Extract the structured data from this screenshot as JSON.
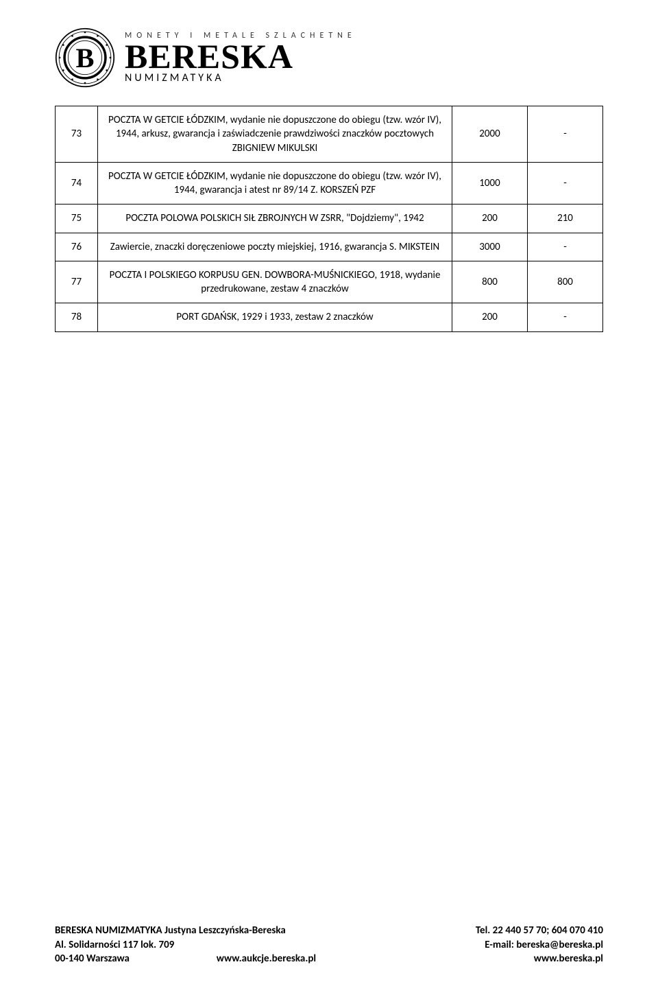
{
  "header": {
    "tagline": "MONETY I METALE SZLACHETNE",
    "brand": "BERESKA",
    "sub": "NUMIZMATYKA",
    "seal_letter": "B",
    "seal_text_color": "#000000",
    "seal_border_color": "#000000"
  },
  "table": {
    "border_color": "#000000",
    "text_color": "#000000",
    "font_size": 15,
    "rows": [
      {
        "num": "73",
        "desc": "POCZTA W GETCIE ŁÓDZKIM, wydanie nie dopuszczone do obiegu (tzw. wzór IV), 1944, arkusz, gwarancja i zaświadczenie prawdziwości znaczków pocztowych ZBIGNIEW MIKULSKI",
        "c1": "2000",
        "c2": "-"
      },
      {
        "num": "74",
        "desc": "POCZTA W GETCIE ŁÓDZKIM, wydanie nie dopuszczone do obiegu (tzw. wzór IV), 1944, gwarancja i atest nr 89/14 Z. KORSZEŃ PZF",
        "c1": "1000",
        "c2": "-"
      },
      {
        "num": "75",
        "desc": "POCZTA POLOWA POLSKICH SIŁ ZBROJNYCH W ZSRR, \"Dojdziemy\", 1942",
        "c1": "200",
        "c2": "210"
      },
      {
        "num": "76",
        "desc": "Zawiercie, znaczki doręczeniowe poczty miejskiej, 1916, gwarancja S. MIKSTEIN",
        "c1": "3000",
        "c2": "-"
      },
      {
        "num": "77",
        "desc": "POCZTA I POLSKIEGO KORPUSU GEN. DOWBORA-MUŚNICKIEGO, 1918, wydanie przedrukowane, zestaw 4 znaczków",
        "c1": "800",
        "c2": "800"
      },
      {
        "num": "78",
        "desc": "PORT GDAŃSK, 1929 i 1933, zestaw 2 znaczków",
        "c1": "200",
        "c2": "-"
      }
    ]
  },
  "footer": {
    "left_line1": "BERESKA NUMIZMATYKA Justyna Leszczyńska-Bereska",
    "left_line2": "Al. Solidarności 117 lok. 709",
    "left_line3": "00-140 Warszawa",
    "center_url": "www.aukcje.bereska.pl",
    "right_line1": "Tel. 22 440 57 70; 604 070 410",
    "right_line2": "E-mail: bereska@bereska.pl",
    "right_line3": "www.bereska.pl"
  }
}
